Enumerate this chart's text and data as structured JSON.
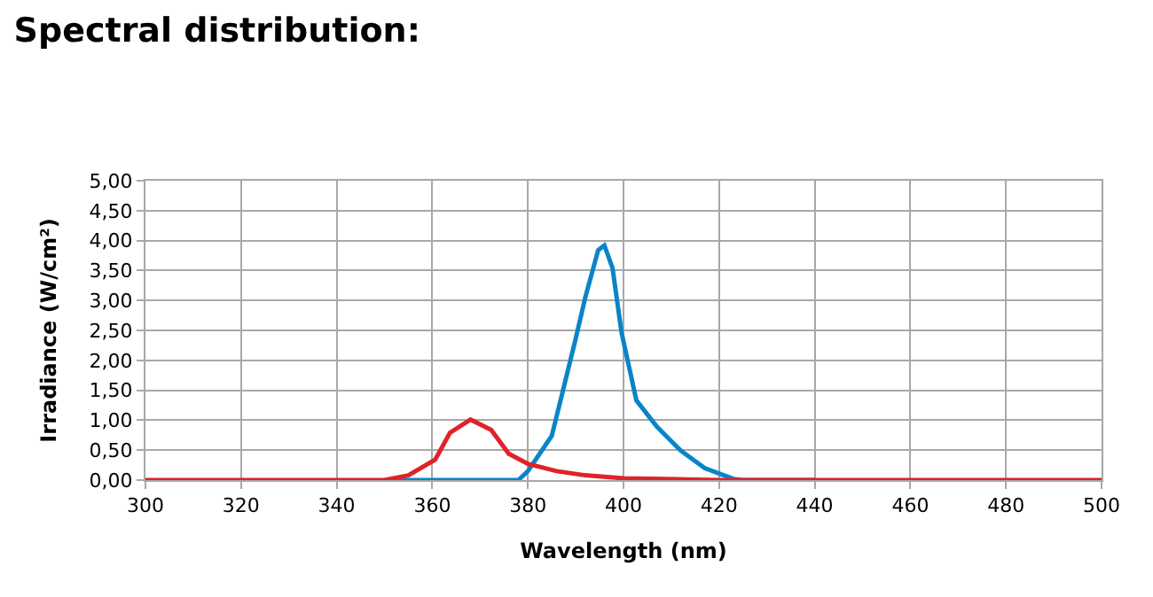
{
  "chart_data": {
    "type": "line",
    "title": "Spectral distribution:",
    "xlabel": "Wavelength (nm)",
    "ylabel": "Irradiance (W/cm²)",
    "xlim": [
      300,
      500
    ],
    "xticks": [
      300,
      320,
      340,
      360,
      380,
      400,
      420,
      440,
      460,
      480,
      500
    ],
    "ylim": [
      0,
      5
    ],
    "yticks": [
      {
        "value": 0,
        "label": "0,00"
      },
      {
        "value": 0.5,
        "label": "0,50"
      },
      {
        "value": 1,
        "label": "1,00"
      },
      {
        "value": 1.5,
        "label": "1,50"
      },
      {
        "value": 2,
        "label": "2,00"
      },
      {
        "value": 2.5,
        "label": "2,50"
      },
      {
        "value": 3,
        "label": "3,00"
      },
      {
        "value": 3.5,
        "label": "3,50"
      },
      {
        "value": 4,
        "label": "4,00"
      },
      {
        "value": 4.5,
        "label": "4,50"
      },
      {
        "value": 5,
        "label": "5,00"
      }
    ],
    "grid": true,
    "marker": "none",
    "line_style": "solid",
    "series": [
      {
        "color": "#0a84c8",
        "x": [
          352,
          378,
          380,
          385,
          390,
          392,
          394.7,
          396,
          397.7,
          399.6,
          402.7,
          407,
          412,
          417,
          423,
          425,
          440
        ],
        "values": [
          0,
          0,
          0.15,
          0.74,
          2.36,
          3.05,
          3.84,
          3.92,
          3.54,
          2.46,
          1.33,
          0.89,
          0.49,
          0.2,
          0.02,
          0,
          0
        ]
      },
      {
        "color": "#e0222a",
        "x": [
          300,
          350,
          355,
          360.6,
          363.7,
          368,
          372.3,
          376,
          380,
          386,
          392,
          400,
          420,
          500
        ],
        "values": [
          0,
          0,
          0.08,
          0.34,
          0.79,
          1.01,
          0.84,
          0.44,
          0.27,
          0.15,
          0.08,
          0.03,
          0,
          0
        ]
      }
    ]
  }
}
